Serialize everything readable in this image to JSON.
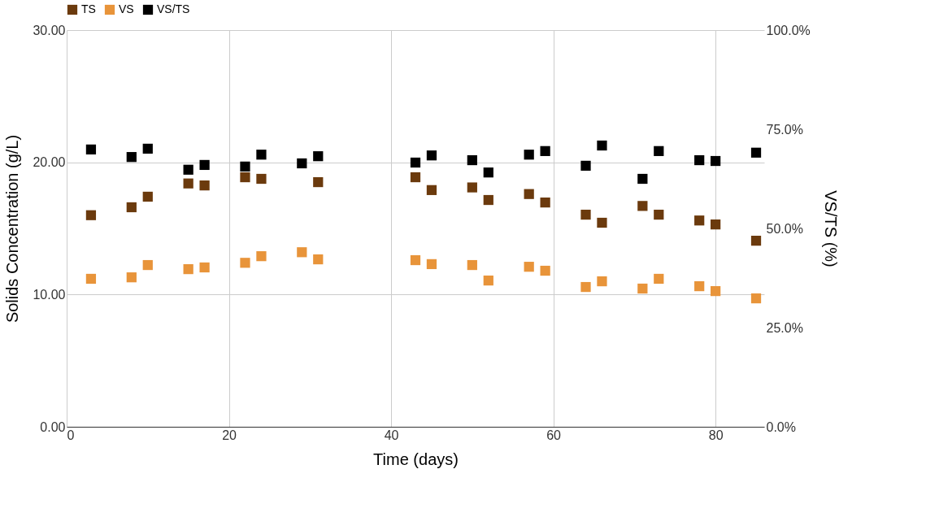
{
  "chart_data": {
    "type": "scatter",
    "xlabel": "Time (days)",
    "ylabel": "Solids Concentration (g/L)",
    "y2label": "VS/TS (%)",
    "x": [
      3,
      8,
      10,
      15,
      17,
      22,
      24,
      29,
      31,
      43,
      45,
      50,
      52,
      57,
      59,
      64,
      66,
      71,
      73,
      78,
      80,
      85
    ],
    "series": [
      {
        "name": "TS",
        "color": "#6b3a0d",
        "values": [
          16.0,
          16.6,
          17.4,
          18.4,
          18.25,
          18.87,
          18.75,
          null,
          18.5,
          18.87,
          17.9,
          18.1,
          17.15,
          17.6,
          16.96,
          16.04,
          15.43,
          16.7,
          16.04,
          15.6,
          15.3,
          14.07
        ]
      },
      {
        "name": "VS",
        "color": "#e8943a",
        "values": [
          11.19,
          11.3,
          12.23,
          11.92,
          12.05,
          12.4,
          12.9,
          13.2,
          12.66,
          12.6,
          12.3,
          12.23,
          11.06,
          12.1,
          11.8,
          10.57,
          11.0,
          10.45,
          11.19,
          10.63,
          10.26,
          9.71
        ]
      },
      {
        "name": "VS/TS",
        "color": "#000000",
        "axis": "y2",
        "values": [
          69.9,
          68.0,
          70.1,
          64.8,
          66.0,
          65.6,
          68.6,
          66.4,
          68.2,
          66.6,
          68.4,
          67.2,
          64.1,
          68.6,
          69.5,
          65.8,
          70.9,
          62.5,
          69.5,
          67.2,
          67.0,
          69.1
        ]
      }
    ],
    "xlim": [
      0,
      86
    ],
    "xticks": [
      0,
      20,
      40,
      60,
      80
    ],
    "ylim": [
      0,
      30
    ],
    "yticks": [
      {
        "value": 0,
        "label": "0.00"
      },
      {
        "value": 10,
        "label": "10.00"
      },
      {
        "value": 20,
        "label": "20.00"
      },
      {
        "value": 30,
        "label": "30.00"
      }
    ],
    "y2lim": [
      0,
      100
    ],
    "y2ticks": [
      {
        "value": 0,
        "label": "0.0%"
      },
      {
        "value": 25,
        "label": "25.0%"
      },
      {
        "value": 50,
        "label": "50.0%"
      },
      {
        "value": 75,
        "label": "75.0%"
      },
      {
        "value": 100,
        "label": "100.0%"
      }
    ],
    "grid": true,
    "legend": "top",
    "marker": "square"
  }
}
